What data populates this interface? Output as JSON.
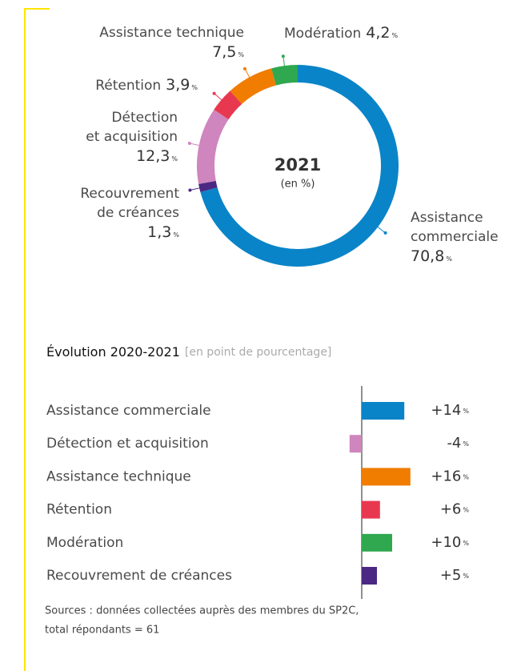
{
  "chart_data": [
    {
      "type": "donut",
      "title": "2021",
      "subtitle": "(en %)",
      "unit": "%",
      "categories": [
        "Assistance commerciale",
        "Recouvrement de créances",
        "Détection et acquisition",
        "Rétention",
        "Assistance technique",
        "Modération"
      ],
      "values": [
        70.8,
        1.3,
        12.3,
        3.9,
        7.5,
        4.2
      ],
      "value_labels": [
        "70,8",
        "1,3",
        "12,3",
        "3,9",
        "7,5",
        "4,2"
      ],
      "colors": [
        "#0a84c8",
        "#4b2883",
        "#cf85bd",
        "#e8384f",
        "#f07c00",
        "#2fa84f"
      ]
    },
    {
      "type": "hbar",
      "title": "Évolution 2020-2021",
      "subtitle": "[en point de pourcentage]",
      "unit": "%",
      "categories": [
        "Assistance commerciale",
        "Détection et acquisition",
        "Assistance technique",
        "Rétention",
        "Modération",
        "Recouvrement de créances"
      ],
      "values": [
        14,
        -4,
        16,
        6,
        10,
        5
      ],
      "value_labels": [
        "+14",
        "-4",
        "+16",
        "+6",
        "+10",
        "+5"
      ],
      "colors": [
        "#0a84c8",
        "#cf85bd",
        "#f07c00",
        "#e8384f",
        "#2fa84f",
        "#4b2883"
      ]
    }
  ],
  "source": [
    "Sources : données collectées auprès des membres du SP2C,",
    "total répondants = 61"
  ]
}
